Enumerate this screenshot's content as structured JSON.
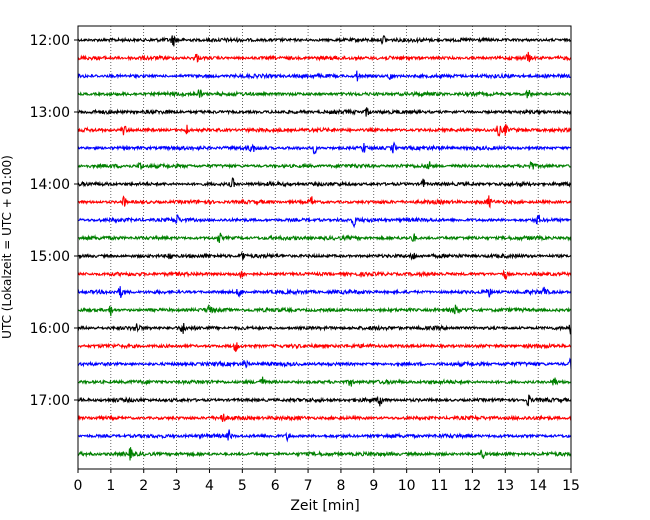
{
  "chart_data": {
    "type": "line",
    "title": "",
    "xlabel": "Zeit  [min]",
    "ylabel": "UTC (Lokalzeit = UTC + 01:00)",
    "xlim": [
      0,
      15
    ],
    "x_ticks": [
      0,
      1,
      2,
      3,
      4,
      5,
      6,
      7,
      8,
      9,
      10,
      11,
      12,
      13,
      14,
      15
    ],
    "x_tick_labels": [
      "0",
      "1",
      "2",
      "3",
      "4",
      "5",
      "6",
      "7",
      "8",
      "9",
      "10",
      "11",
      "12",
      "13",
      "14",
      "15"
    ],
    "y_ticks": [
      "12:00",
      "13:00",
      "14:00",
      "15:00",
      "16:00",
      "17:00"
    ],
    "y_tick_trace_index": [
      0,
      4,
      8,
      12,
      16,
      20
    ],
    "grid": "vertical dotted",
    "legend": "none",
    "colors": [
      "#000000",
      "#ff0000",
      "#0000ff",
      "#008000"
    ],
    "series": [
      {
        "start": "12:00",
        "color": "#000000",
        "events_min": [
          2.9,
          9.3
        ]
      },
      {
        "start": "12:15",
        "color": "#ff0000",
        "events_min": [
          3.6,
          13.7
        ]
      },
      {
        "start": "12:30",
        "color": "#0000ff",
        "events_min": [
          8.5,
          9.5
        ]
      },
      {
        "start": "12:45",
        "color": "#008000",
        "events_min": [
          3.7,
          13.7
        ]
      },
      {
        "start": "13:00",
        "color": "#000000",
        "events_min": [
          8.8
        ]
      },
      {
        "start": "13:15",
        "color": "#ff0000",
        "events_min": [
          1.4,
          3.3,
          12.8,
          13.0
        ]
      },
      {
        "start": "13:30",
        "color": "#0000ff",
        "events_min": [
          5.3,
          7.2,
          8.7,
          9.6
        ]
      },
      {
        "start": "13:45",
        "color": "#008000",
        "events_min": [
          1.9,
          10.7,
          13.8
        ]
      },
      {
        "start": "14:00",
        "color": "#000000",
        "events_min": [
          4.7,
          10.5
        ]
      },
      {
        "start": "14:15",
        "color": "#ff0000",
        "events_min": [
          1.4,
          7.1,
          12.5
        ]
      },
      {
        "start": "14:30",
        "color": "#0000ff",
        "events_min": [
          3.0,
          8.4,
          14.0
        ]
      },
      {
        "start": "14:45",
        "color": "#008000",
        "events_min": [
          4.3,
          10.2
        ]
      },
      {
        "start": "15:00",
        "color": "#000000",
        "events_min": [
          2.8,
          5.0,
          10.2
        ]
      },
      {
        "start": "15:15",
        "color": "#ff0000",
        "events_min": [
          5.0,
          13.0
        ]
      },
      {
        "start": "15:30",
        "color": "#0000ff",
        "events_min": [
          1.3,
          4.9,
          12.5,
          14.2
        ]
      },
      {
        "start": "15:45",
        "color": "#008000",
        "events_min": [
          1.0,
          4.0,
          11.5
        ]
      },
      {
        "start": "16:00",
        "color": "#000000",
        "events_min": [
          1.8,
          3.2,
          15.0
        ]
      },
      {
        "start": "16:15",
        "color": "#ff0000",
        "events_min": [
          4.8
        ]
      },
      {
        "start": "16:30",
        "color": "#0000ff",
        "events_min": [
          5.1,
          15.0
        ]
      },
      {
        "start": "16:45",
        "color": "#008000",
        "events_min": [
          5.6,
          8.3,
          14.5
        ]
      },
      {
        "start": "17:00",
        "color": "#000000",
        "events_min": [
          9.2,
          13.7
        ]
      },
      {
        "start": "17:15",
        "color": "#ff0000",
        "events_min": [
          4.4
        ]
      },
      {
        "start": "17:30",
        "color": "#0000ff",
        "events_min": [
          4.6,
          6.4
        ]
      },
      {
        "start": "17:45",
        "color": "#008000",
        "events_min": [
          1.6,
          12.3
        ]
      }
    ]
  }
}
